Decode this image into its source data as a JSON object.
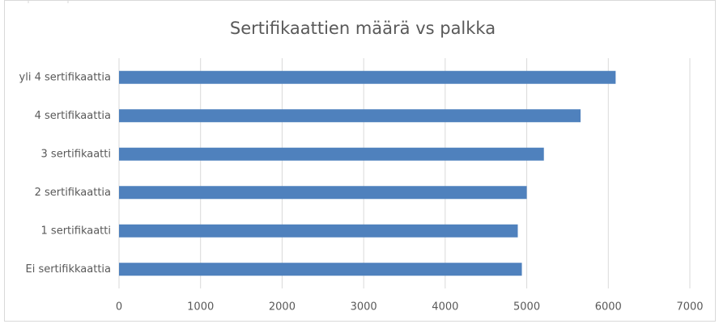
{
  "chart_data": {
    "type": "hbar",
    "title": "Sertifikaattien määrä vs palkka",
    "categories": [
      "yli 4 sertifikaattia",
      "4 sertifikaattia",
      "3 sertifikaatti",
      "2 sertifikaattia",
      "1 sertifikaatti",
      "Ei sertifikkaattia"
    ],
    "values": [
      6090,
      5660,
      5210,
      5000,
      4890,
      4940
    ],
    "color": "#4f81bd",
    "xlim": [
      0,
      7000
    ],
    "xticks": [
      0,
      1000,
      2000,
      3000,
      4000,
      5000,
      6000,
      7000
    ],
    "grid": true
  }
}
